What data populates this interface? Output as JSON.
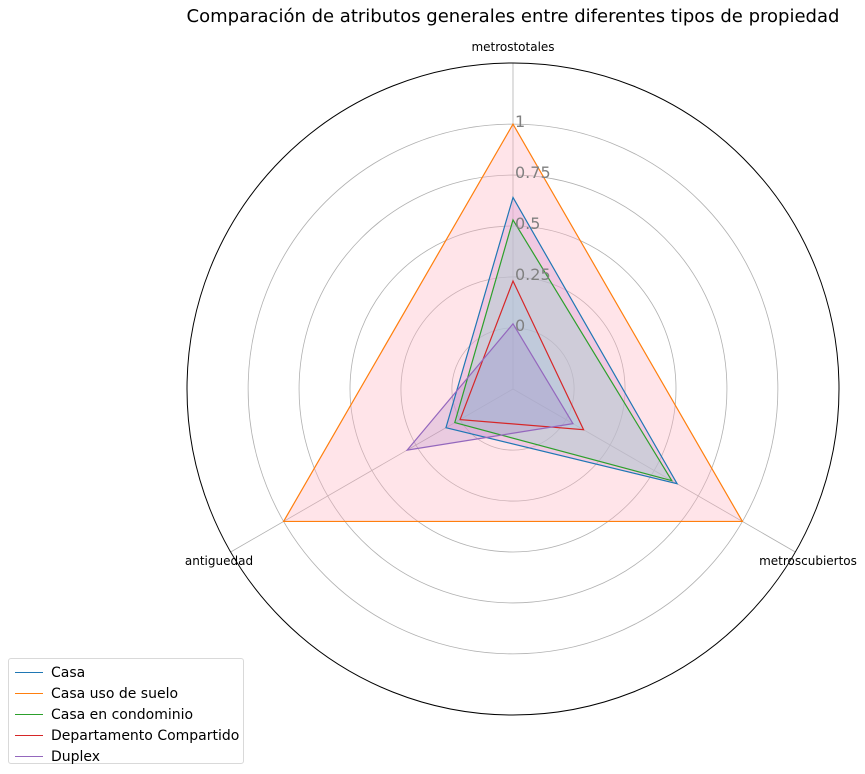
{
  "chart_data": {
    "type": "radar",
    "title": "Comparación de atributos generales entre diferentes tipos de propiedad",
    "axes": [
      "metrostotales",
      "metroscubiertos",
      "antiguedad"
    ],
    "ticks": [
      0,
      0.25,
      0.5,
      0.75,
      1
    ],
    "tick_labels": [
      "0",
      "0.25",
      "0.5",
      "0.75",
      "1"
    ],
    "rlim": [
      -0.3,
      1.3
    ],
    "grid": true,
    "legend_position": "bottom-left",
    "series": [
      {
        "name": "Casa",
        "values": [
          0.64,
          0.63,
          0.08
        ],
        "color": "#1f77b4",
        "fill": "#d1a3e6",
        "fill_opacity": 0.45
      },
      {
        "name": "Casa uso de suelo",
        "values": [
          1.0,
          1.0,
          1.0
        ],
        "color": "#ff7f0e",
        "fill": "#ffb3bf",
        "fill_opacity": 0.35
      },
      {
        "name": "Casa en condominio",
        "values": [
          0.53,
          0.6,
          0.03
        ],
        "color": "#2ca02c",
        "fill": "#8ed0c9",
        "fill_opacity": 0.35
      },
      {
        "name": "Departamento Compartido",
        "values": [
          0.23,
          0.1,
          0.0
        ],
        "color": "#d62728",
        "fill": "#9fc7e0",
        "fill_opacity": 0.3
      },
      {
        "name": "Duplex",
        "values": [
          0.02,
          0.04,
          0.3
        ],
        "color": "#9467bd",
        "fill": "#9467bd",
        "fill_opacity": 0.2
      }
    ]
  }
}
